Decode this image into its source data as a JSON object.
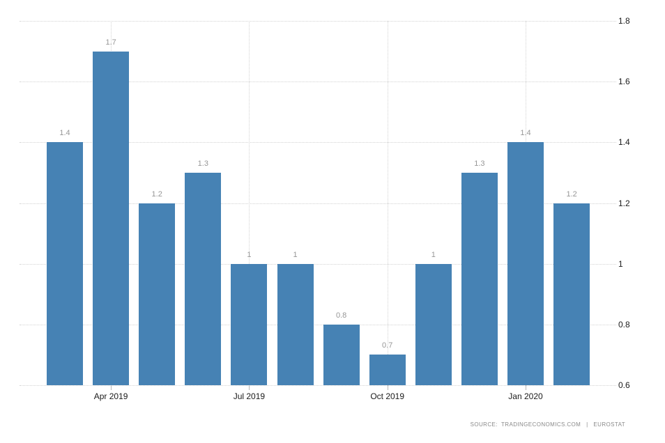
{
  "chart": {
    "source_text": "SOURCE:  TRADINGECONOMICS.COM   |   EUROSTAT"
  },
  "chart_data": {
    "type": "bar",
    "title": "",
    "xlabel": "",
    "ylabel": "",
    "values": [
      1.4,
      1.7,
      1.2,
      1.3,
      1,
      1,
      0.8,
      0.7,
      1,
      1.3,
      1.4,
      1.2
    ],
    "value_labels": [
      "1.4",
      "1.7",
      "1.2",
      "1.3",
      "1",
      "1",
      "0.8",
      "0.7",
      "1",
      "1.3",
      "1.4",
      "1.2"
    ],
    "x_ticks": [
      {
        "label": "Apr 2019",
        "bar_index": 1
      },
      {
        "label": "Jul 2019",
        "bar_index": 4
      },
      {
        "label": "Oct 2019",
        "bar_index": 7
      },
      {
        "label": "Jan 2020",
        "bar_index": 10
      }
    ],
    "y_ticks": [
      1.8,
      1.6,
      1.4,
      1.2,
      1,
      0.8,
      0.6
    ],
    "y_tick_labels": [
      "1.8",
      "1.6",
      "1.4",
      "1.2",
      "1",
      "0.8",
      "0.6"
    ],
    "ylim": [
      0.6,
      1.8
    ],
    "bar_color": "#4682b4",
    "grid": true,
    "legend_position": "none",
    "y_axis_side": "right"
  }
}
